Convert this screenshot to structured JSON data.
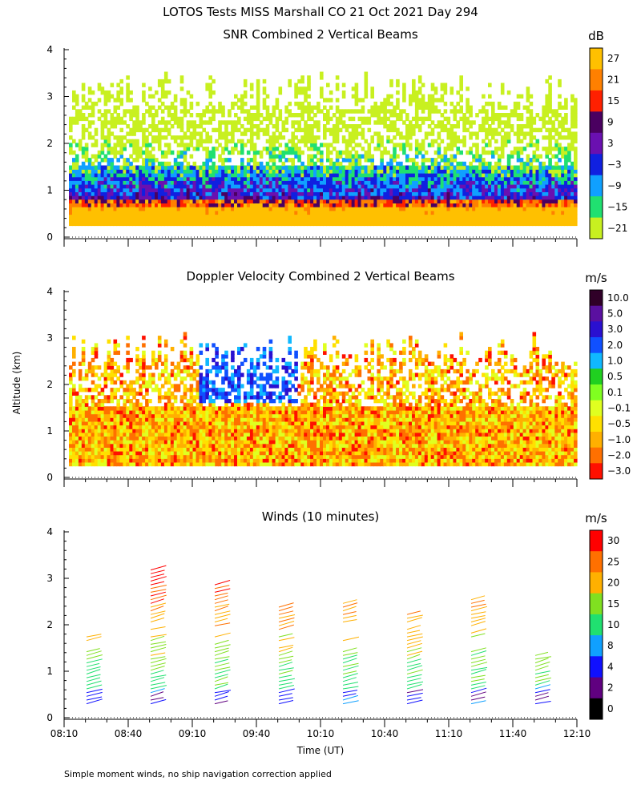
{
  "title": "LOTOS Tests MISS Marshall CO  21 Oct 2021 Day 294",
  "footnote": "Simple moment winds, no ship navigation correction applied",
  "y_axis_shared_label": "Altitude (km)",
  "x_axis_label": "Time (UT)",
  "x_ticks": [
    "08:10",
    "08:40",
    "09:10",
    "09:40",
    "10:10",
    "10:40",
    "11:10",
    "11:40",
    "12:10"
  ],
  "y_ticks": [
    "0",
    "1",
    "2",
    "3",
    "4"
  ],
  "chart_data": [
    {
      "type": "heatmap",
      "title": "SNR Combined 2 Vertical Beams",
      "units": "dB",
      "ylim": [
        0,
        4
      ],
      "xlim": [
        "08:10",
        "12:10"
      ],
      "colorbar_labels": [
        "27",
        "21",
        "15",
        "9",
        "3",
        "−3",
        "−9",
        "−15",
        "−21"
      ],
      "colorbar_colors": [
        "#ffc000",
        "#ff8000",
        "#ff2000",
        "#4a0060",
        "#6a10b0",
        "#1020e0",
        "#10a0ff",
        "#20e070",
        "#c8f020"
      ]
    },
    {
      "type": "heatmap",
      "title": "Doppler Velocity Combined 2 Vertical Beams",
      "units": "m/s",
      "ylim": [
        0,
        4
      ],
      "xlim": [
        "08:10",
        "12:10"
      ],
      "colorbar_labels": [
        "10.0",
        "5.0",
        "3.0",
        "2.0",
        "1.0",
        "0.5",
        "0.1",
        "−0.1",
        "−0.5",
        "−1.0",
        "−2.0",
        "−3.0"
      ],
      "colorbar_colors": [
        "#300028",
        "#5a10a0",
        "#2a10d0",
        "#1050ff",
        "#10b8ff",
        "#20d020",
        "#80ff20",
        "#e0ff20",
        "#ffe000",
        "#ffb000",
        "#ff7000",
        "#ff1000"
      ]
    },
    {
      "type": "scatter",
      "title": "Winds (10 minutes)",
      "units": "m/s",
      "ylim": [
        0,
        4
      ],
      "xlim": [
        "08:10",
        "12:10"
      ],
      "colorbar_labels": [
        "30",
        "25",
        "20",
        "15",
        "10",
        "8",
        "4",
        "2",
        "0"
      ],
      "colorbar_colors": [
        "#ff0000",
        "#ff7000",
        "#ffb000",
        "#80e020",
        "#20e070",
        "#10a0ff",
        "#1010ff",
        "#600080",
        "#000000"
      ],
      "profile_times": [
        "08:25",
        "08:55",
        "09:25",
        "09:55",
        "10:25",
        "10:55",
        "11:25",
        "11:55"
      ],
      "profile_tops_km": [
        1.8,
        3.2,
        2.9,
        2.4,
        2.5,
        2.3,
        2.6,
        1.4
      ]
    }
  ]
}
